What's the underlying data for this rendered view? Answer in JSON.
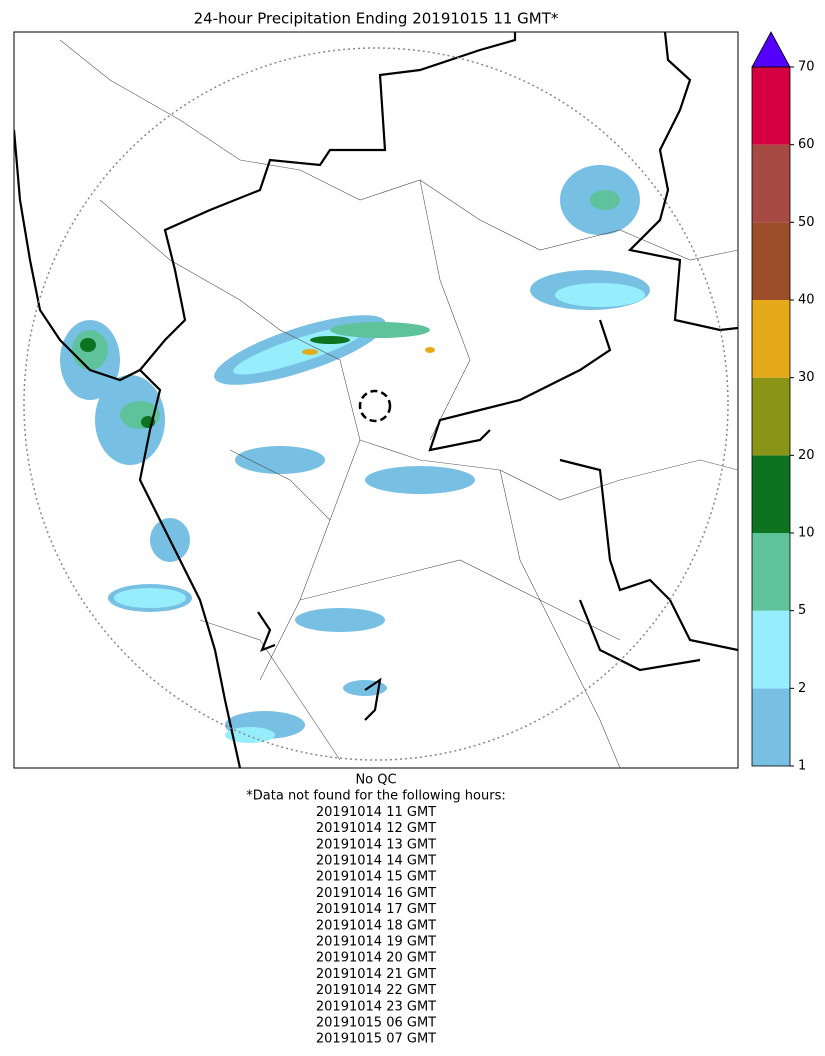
{
  "title": "24-hour Precipitation Ending 20191015 11 GMT*",
  "colorbar": {
    "ticks": [
      1,
      2,
      5,
      10,
      20,
      30,
      40,
      50,
      60,
      70
    ],
    "colors": [
      "#78bfe4",
      "#96eefd",
      "#5ec39a",
      "#0d7320",
      "#8a9518",
      "#e5aa1a",
      "#9c4e2a",
      "#a84a44",
      "#d50042"
    ],
    "extend_color": "#5500ff"
  },
  "notes": [
    "No QC",
    "*Data not found for the following hours:",
    "20191014 11 GMT",
    "20191014 12 GMT",
    "20191014 13 GMT",
    "20191014 14 GMT",
    "20191014 15 GMT",
    "20191014 16 GMT",
    "20191014 17 GMT",
    "20191014 18 GMT",
    "20191014 19 GMT",
    "20191014 20 GMT",
    "20191014 21 GMT",
    "20191014 22 GMT",
    "20191014 23 GMT",
    "20191015 06 GMT",
    "20191015 07 GMT"
  ]
}
